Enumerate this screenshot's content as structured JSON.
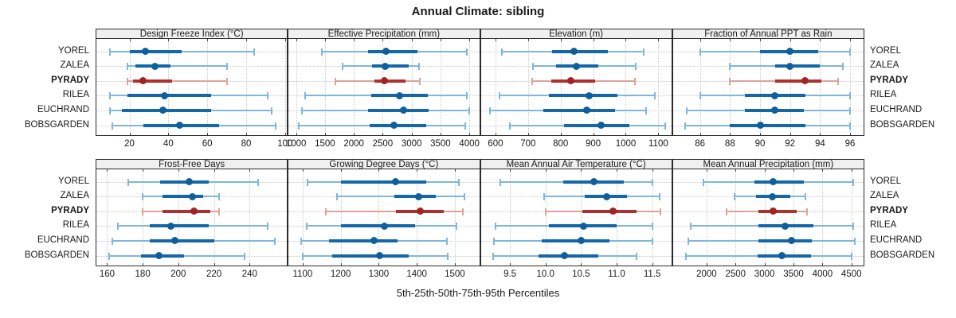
{
  "title": "Annual Climate: sibling",
  "caption": "5th-25th-50th-75th-95th Percentiles",
  "sites": [
    "YOREL",
    "ZALEA",
    "PYRADY",
    "RILEA",
    "EUCHRAND",
    "BOBSGARDEN"
  ],
  "highlight_site": "PYRADY",
  "colors": {
    "default_whisker": "#7db7dc",
    "default_box": "#1568a8",
    "default_dot": "#0f5f9c",
    "highlight_whisker": "#dca39a",
    "highlight_box": "#b03030",
    "highlight_dot": "#a02424",
    "grid": "#c9c9c9",
    "border": "#2a2a2a",
    "header_bg": "#f0f0f0",
    "text": "#1a1a1a"
  },
  "chart_data": {
    "type": "error-bar",
    "orientation": "horizontal",
    "percentile_levels": [
      5,
      25,
      50,
      75,
      95
    ],
    "categories": [
      "YOREL",
      "ZALEA",
      "PYRADY",
      "RILEA",
      "EUCHRAND",
      "BOBSGARDEN"
    ],
    "highlight": "PYRADY",
    "grid": "dotted",
    "panels": [
      {
        "title": "Design Freeze Index (°C)",
        "axis": {
          "tick_values": [
            20,
            40,
            60,
            80,
            100
          ],
          "tick_labels": [
            "20",
            "40",
            "60",
            "80",
            "100"
          ],
          "domain": [
            3,
            101
          ]
        },
        "series": [
          {
            "name": "YOREL",
            "p": [
              10,
              20,
              28,
              47,
              84
            ]
          },
          {
            "name": "ZALEA",
            "p": [
              19,
              23,
              33,
              41,
              70
            ]
          },
          {
            "name": "PYRADY",
            "p": [
              19,
              22,
              27,
              42,
              70
            ]
          },
          {
            "name": "RILEA",
            "p": [
              10,
              19,
              38,
              62,
              91
            ]
          },
          {
            "name": "EUCHRAND",
            "p": [
              10,
              16,
              37,
              62,
              93
            ]
          },
          {
            "name": "BOBSGARDEN",
            "p": [
              11,
              27,
              46,
              66,
              95
            ]
          }
        ]
      },
      {
        "title": "Effective Precipitation (mm)",
        "axis": {
          "tick_values": [
            1000,
            1500,
            2000,
            2500,
            3000,
            3500,
            4000
          ],
          "tick_labels": [
            "1000",
            "1500",
            "2000",
            "2500",
            "3000",
            "3500",
            "4000"
          ],
          "domain": [
            870,
            4170
          ]
        },
        "series": [
          {
            "name": "YOREL",
            "p": [
              1450,
              2250,
              2560,
              3100,
              3960
            ]
          },
          {
            "name": "ZALEA",
            "p": [
              1800,
              2320,
              2540,
              2950,
              3130
            ]
          },
          {
            "name": "PYRADY",
            "p": [
              1680,
              2350,
              2530,
              2890,
              3140
            ]
          },
          {
            "name": "RILEA",
            "p": [
              1150,
              2300,
              2790,
              3280,
              3950
            ]
          },
          {
            "name": "EUCHRAND",
            "p": [
              1100,
              2250,
              2860,
              3290,
              4000
            ]
          },
          {
            "name": "BOBSGARDEN",
            "p": [
              1050,
              2280,
              2700,
              3250,
              3930
            ]
          }
        ]
      },
      {
        "title": "Elevation (m)",
        "axis": {
          "tick_values": [
            600,
            700,
            800,
            900,
            1000,
            1100
          ],
          "tick_labels": [
            "600",
            "700",
            "800",
            "900",
            "1000",
            "1100"
          ],
          "domain": [
            555,
            1140
          ]
        },
        "series": [
          {
            "name": "YOREL",
            "p": [
              620,
              775,
              840,
              945,
              1055
            ]
          },
          {
            "name": "ZALEA",
            "p": [
              715,
              785,
              848,
              915,
              1030
            ]
          },
          {
            "name": "PYRADY",
            "p": [
              712,
              772,
              832,
              905,
              1028
            ]
          },
          {
            "name": "RILEA",
            "p": [
              612,
              765,
              888,
              975,
              1090
            ]
          },
          {
            "name": "EUCHRAND",
            "p": [
              582,
              748,
              880,
              968,
              1062
            ]
          },
          {
            "name": "BOBSGARDEN",
            "p": [
              645,
              810,
              925,
              1010,
              1120
            ]
          }
        ]
      },
      {
        "title": "Fraction of Annual PPT as Rain",
        "axis": {
          "tick_values": [
            86,
            88,
            90,
            92,
            94,
            96
          ],
          "tick_labels": [
            "86",
            "88",
            "90",
            "92",
            "94",
            "96"
          ],
          "domain": [
            84.2,
            96.9
          ]
        },
        "series": [
          {
            "name": "YOREL",
            "p": [
              86,
              90,
              92,
              93.9,
              96
            ]
          },
          {
            "name": "ZALEA",
            "p": [
              88,
              91,
              92,
              94,
              95.5
            ]
          },
          {
            "name": "PYRADY",
            "p": [
              88,
              91,
              93,
              94.1,
              95.2
            ]
          },
          {
            "name": "RILEA",
            "p": [
              86,
              89,
              91,
              93,
              96
            ]
          },
          {
            "name": "EUCHRAND",
            "p": [
              85.1,
              89,
              91,
              92.9,
              96
            ]
          },
          {
            "name": "BOBSGARDEN",
            "p": [
              85,
              88,
              90,
              93,
              96
            ]
          }
        ]
      },
      {
        "title": "Frost-Free Days",
        "axis": {
          "tick_values": [
            160,
            180,
            200,
            220,
            240
          ],
          "tick_labels": [
            "160",
            "180",
            "200",
            "220",
            "240"
          ],
          "domain": [
            154,
            261
          ]
        },
        "series": [
          {
            "name": "YOREL",
            "p": [
              172,
              190,
              206,
              217,
              245
            ]
          },
          {
            "name": "ZALEA",
            "p": [
              180,
              191,
              208,
              214,
              223
            ]
          },
          {
            "name": "PYRADY",
            "p": [
              180,
              191,
              209,
              218,
              223
            ]
          },
          {
            "name": "RILEA",
            "p": [
              166,
              184,
              196,
              217,
              250
            ]
          },
          {
            "name": "EUCHRAND",
            "p": [
              163,
              184,
              198,
              220,
              254
            ]
          },
          {
            "name": "BOBSGARDEN",
            "p": [
              161,
              179,
              189,
              203,
              237
            ]
          }
        ]
      },
      {
        "title": "Growing Degree Days (°C)",
        "axis": {
          "tick_values": [
            1100,
            1200,
            1300,
            1400,
            1500
          ],
          "tick_labels": [
            "1100",
            "1200",
            "1300",
            "1400",
            "1500"
          ],
          "domain": [
            1063,
            1564
          ]
        },
        "series": [
          {
            "name": "YOREL",
            "p": [
              1112,
              1200,
              1345,
              1425,
              1510
            ]
          },
          {
            "name": "ZALEA",
            "p": [
              1190,
              1340,
              1405,
              1450,
              1525
            ]
          },
          {
            "name": "PYRADY",
            "p": [
              1160,
              1345,
              1410,
              1470,
              1522
            ]
          },
          {
            "name": "RILEA",
            "p": [
              1110,
              1200,
              1315,
              1395,
              1505
            ]
          },
          {
            "name": "EUCHRAND",
            "p": [
              1095,
              1170,
              1288,
              1350,
              1480
            ]
          },
          {
            "name": "BOBSGARDEN",
            "p": [
              1100,
              1178,
              1303,
              1378,
              1482
            ]
          }
        ]
      },
      {
        "title": "Mean Annual Air Temperature (°C)",
        "axis": {
          "tick_values": [
            9.5,
            10.0,
            10.5,
            11.0,
            11.5
          ],
          "tick_labels": [
            "9.5",
            "10.0",
            "10.5",
            "11.0",
            "11.5"
          ],
          "domain": [
            9.09,
            11.77
          ]
        },
        "series": [
          {
            "name": "YOREL",
            "p": [
              9.37,
              10.25,
              10.68,
              11.1,
              11.5
            ]
          },
          {
            "name": "ZALEA",
            "p": [
              9.98,
              10.55,
              10.86,
              11.15,
              11.6
            ]
          },
          {
            "name": "PYRADY",
            "p": [
              10.0,
              10.52,
              10.95,
              11.28,
              11.62
            ]
          },
          {
            "name": "RILEA",
            "p": [
              9.3,
              10.05,
              10.53,
              11.0,
              11.5
            ]
          },
          {
            "name": "EUCHRAND",
            "p": [
              9.27,
              9.95,
              10.5,
              10.9,
              11.5
            ]
          },
          {
            "name": "BOBSGARDEN",
            "p": [
              9.26,
              9.9,
              10.27,
              10.74,
              11.28
            ]
          }
        ]
      },
      {
        "title": "Mean Annual Precipitation (mm)",
        "axis": {
          "tick_values": [
            2000,
            2500,
            3000,
            3500,
            4000,
            4500
          ],
          "tick_labels": [
            "2000",
            "2500",
            "3000",
            "3500",
            "4000",
            "4500"
          ],
          "domain": [
            1420,
            4710
          ]
        },
        "series": [
          {
            "name": "YOREL",
            "p": [
              1950,
              2820,
              3150,
              3680,
              4530
            ]
          },
          {
            "name": "ZALEA",
            "p": [
              2480,
              2850,
              3140,
              3450,
              3700
            ]
          },
          {
            "name": "PYRADY",
            "p": [
              2340,
              2900,
              3150,
              3550,
              3730
            ]
          },
          {
            "name": "RILEA",
            "p": [
              1730,
              2900,
              3350,
              3850,
              4530
            ]
          },
          {
            "name": "EUCHRAND",
            "p": [
              1680,
              2900,
              3470,
              3820,
              4560
            ]
          },
          {
            "name": "BOBSGARDEN",
            "p": [
              1650,
              2880,
              3300,
              3800,
              4500
            ]
          }
        ]
      }
    ]
  }
}
